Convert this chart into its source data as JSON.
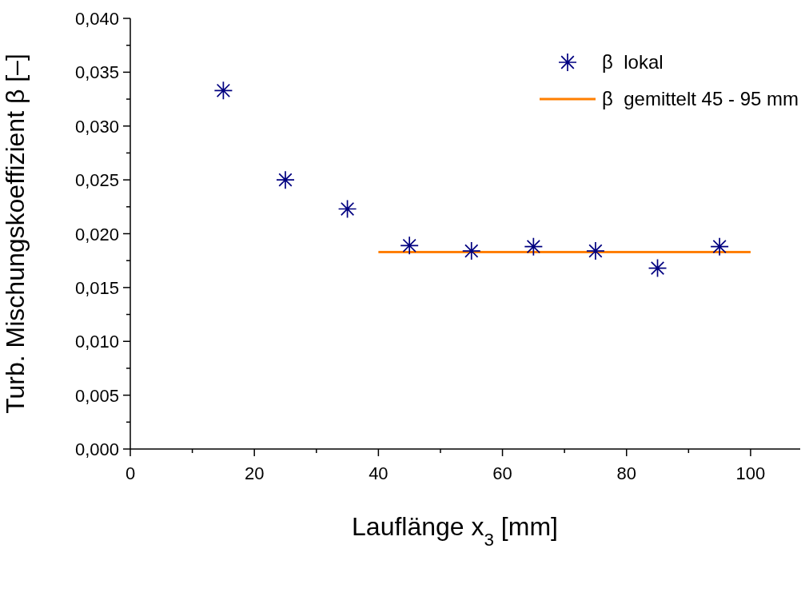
{
  "chart_data": {
    "type": "scatter",
    "xlabel": "Lauflänge x$_{3}$  [mm]",
    "ylabel": "Turb. Mischungskoeffizient β [–]",
    "xlim": [
      0,
      108
    ],
    "xticks": [
      0,
      {
        "value": 10,
        "label": null
      },
      20,
      {
        "value": 30,
        "label": null
      },
      40,
      {
        "value": 50,
        "label": null
      },
      60,
      {
        "value": 70,
        "label": null
      },
      80,
      {
        "value": 90,
        "label": null
      },
      100
    ],
    "ylim": [
      0,
      0.04
    ],
    "yticks": [
      {
        "value": 0,
        "label": "0,000"
      },
      {
        "value": 0.0025,
        "label": null
      },
      {
        "value": 0.005,
        "label": "0,005"
      },
      {
        "value": 0.0075,
        "label": null
      },
      {
        "value": 0.01,
        "label": "0,010"
      },
      {
        "value": 0.0125,
        "label": null
      },
      {
        "value": 0.015,
        "label": "0,015"
      },
      {
        "value": 0.0175,
        "label": null
      },
      {
        "value": 0.02,
        "label": "0,020"
      },
      {
        "value": 0.0225,
        "label": null
      },
      {
        "value": 0.025,
        "label": "0,025"
      },
      {
        "value": 0.0275,
        "label": null
      },
      {
        "value": 0.03,
        "label": "0,030"
      },
      {
        "value": 0.0325,
        "label": null
      },
      {
        "value": 0.035,
        "label": "0,035"
      },
      {
        "value": 0.0375,
        "label": null
      },
      {
        "value": 0.04,
        "label": "0,040"
      }
    ],
    "grid": false,
    "legend": "top right",
    "series": [
      {
        "name": "β  lokal",
        "marker": "cross",
        "color": "#000080",
        "x": [
          15,
          25,
          35,
          45,
          55,
          65,
          75,
          85,
          95
        ],
        "values": [
          0.0333,
          0.025,
          0.0223,
          0.0189,
          0.0184,
          0.0188,
          0.0184,
          0.0168,
          0.0188
        ]
      },
      {
        "name": "β  gemittelt 45 - 95 mm",
        "type": "line",
        "color": "#ff7f00",
        "x": [
          40,
          100
        ],
        "values": [
          0.0183,
          0.0183
        ],
        "line_style": "solid"
      }
    ]
  }
}
